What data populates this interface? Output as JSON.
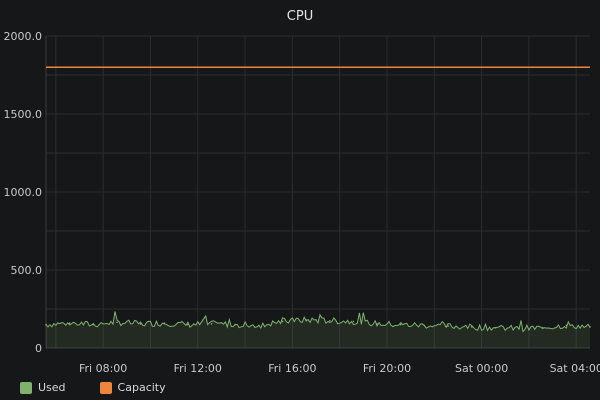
{
  "chart_data": {
    "type": "area",
    "title": "CPU",
    "xlabel": "",
    "ylabel": "",
    "ylim": [
      0,
      2000
    ],
    "y_ticks": [
      "0",
      "500.0",
      "1000.0",
      "1500.0",
      "2000.0"
    ],
    "x_range": [
      "Fri 05:35",
      "Sat 04:35"
    ],
    "x_ticks": [
      "Fri 08:00",
      "Fri 12:00",
      "Fri 16:00",
      "Fri 20:00",
      "Sat 00:00",
      "Sat 04:00"
    ],
    "grid": true,
    "legend_position": "bottom-left",
    "series": [
      {
        "name": "Used",
        "color": "#7eb26d",
        "x": [
          "Fri 05:35",
          "Fri 06:35",
          "Fri 07:35",
          "Fri 08:35",
          "Fri 09:35",
          "Fri 10:35",
          "Fri 11:35",
          "Fri 12:35",
          "Fri 13:35",
          "Fri 14:35",
          "Fri 15:35",
          "Fri 16:35",
          "Fri 17:35",
          "Fri 18:35",
          "Fri 19:35",
          "Fri 20:35",
          "Fri 21:35",
          "Fri 22:35",
          "Fri 23:35",
          "Sat 00:35",
          "Sat 01:35",
          "Sat 02:35",
          "Sat 03:35",
          "Sat 04:35"
        ],
        "values": [
          150,
          160,
          150,
          165,
          155,
          160,
          150,
          155,
          150,
          145,
          170,
          180,
          175,
          170,
          155,
          150,
          145,
          140,
          135,
          130,
          125,
          130,
          145,
          135
        ]
      },
      {
        "name": "Capacity",
        "color": "#ef843c",
        "x": [
          "Fri 05:35",
          "Sat 04:35"
        ],
        "values": [
          1800,
          1800
        ]
      }
    ]
  }
}
